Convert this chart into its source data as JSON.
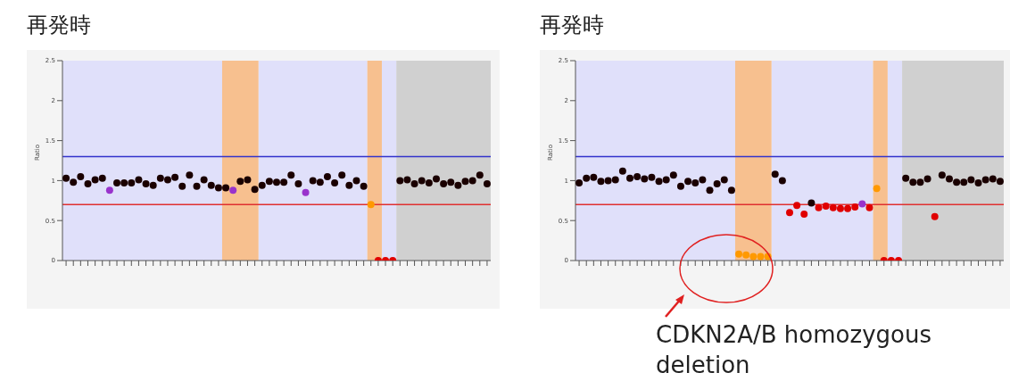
{
  "chart_data": [
    {
      "type": "scatter",
      "title": "再発時",
      "ylabel": "Ratio",
      "categories": [
        null,
        null,
        null,
        null,
        null,
        null,
        null,
        null,
        null,
        null,
        null,
        null,
        null,
        null,
        null,
        null,
        null,
        null,
        null,
        null,
        null,
        null,
        null,
        null,
        null,
        null,
        null,
        null,
        null,
        null,
        null,
        null,
        null,
        null,
        null,
        null,
        null,
        null,
        null,
        null,
        null,
        null,
        null,
        null,
        null,
        null,
        null,
        null,
        null,
        null,
        null,
        null,
        null,
        null,
        null,
        null,
        null,
        null,
        null
      ],
      "ylim": [
        0,
        2.5
      ],
      "yticks": [
        0,
        0.5,
        1,
        1.5,
        2,
        2.5
      ],
      "grid": false,
      "legend": false,
      "marker": "circle",
      "series": [
        {
          "values": [
            1.03,
            0.98,
            1.05,
            0.96,
            1.01,
            1.03,
            0.88,
            0.97,
            0.97,
            0.97,
            1.01,
            0.96,
            0.94,
            1.03,
            1.01,
            1.04,
            0.93,
            1.07,
            0.93,
            1.01,
            0.94,
            0.91,
            0.91,
            0.88,
            0.99,
            1.01,
            0.89,
            0.94,
            0.99,
            0.98,
            0.98,
            1.07,
            0.96,
            0.85,
            1.0,
            0.98,
            1.05,
            0.97,
            1.07,
            0.94,
            1.0,
            0.93,
            0.7,
            0,
            0,
            0,
            1.0,
            1.01,
            0.96,
            1.0,
            0.97,
            1.02,
            0.96,
            0.98,
            0.94,
            0.99,
            1.0,
            1.07,
            0.96
          ],
          "colors": [
            "#1a0000",
            "#1a0000",
            "#1a0000",
            "#1a0000",
            "#1a0000",
            "#1a0000",
            "#9933cc",
            "#1a0000",
            "#1a0000",
            "#1a0000",
            "#1a0000",
            "#1a0000",
            "#1a0000",
            "#1a0000",
            "#1a0000",
            "#1a0000",
            "#1a0000",
            "#1a0000",
            "#1a0000",
            "#1a0000",
            "#1a0000",
            "#1a0000",
            "#1a0000",
            "#9933cc",
            "#1a0000",
            "#1a0000",
            "#1a0000",
            "#1a0000",
            "#1a0000",
            "#1a0000",
            "#1a0000",
            "#1a0000",
            "#1a0000",
            "#9933cc",
            "#1a0000",
            "#1a0000",
            "#1a0000",
            "#1a0000",
            "#1a0000",
            "#1a0000",
            "#1a0000",
            "#1a0000",
            "#ff9900",
            "#e00000",
            "#e00000",
            "#e00000",
            "#1a0000",
            "#1a0000",
            "#1a0000",
            "#1a0000",
            "#1a0000",
            "#1a0000",
            "#1a0000",
            "#1a0000",
            "#1a0000",
            "#1a0000",
            "#1a0000",
            "#1a0000",
            "#1a0000"
          ]
        }
      ],
      "ref_lines": [
        {
          "axis": "y",
          "value": 1.3,
          "color": "#3333cc"
        },
        {
          "axis": "y",
          "value": 0.7,
          "color": "#e03030"
        }
      ]
    },
    {
      "type": "scatter",
      "title": "再発時",
      "ylabel": "Ratio",
      "categories": [
        null,
        null,
        null,
        null,
        null,
        null,
        null,
        null,
        null,
        null,
        null,
        null,
        null,
        null,
        null,
        null,
        null,
        null,
        null,
        null,
        null,
        null,
        null,
        null,
        null,
        null,
        null,
        null,
        null,
        null,
        null,
        null,
        null,
        null,
        null,
        null,
        null,
        null,
        null,
        null,
        null,
        null,
        null,
        null,
        null,
        null,
        null,
        null,
        null,
        null,
        null,
        null,
        null,
        null,
        null,
        null,
        null,
        null,
        null
      ],
      "ylim": [
        0,
        2.5
      ],
      "yticks": [
        0,
        0.5,
        1,
        1.5,
        2,
        2.5
      ],
      "grid": false,
      "legend": false,
      "marker": "circle",
      "annotations": [
        "CDKN2A/B homozygous deletion"
      ],
      "series": [
        {
          "values": [
            0.97,
            1.03,
            1.04,
            0.99,
            1.0,
            1.01,
            1.12,
            1.03,
            1.05,
            1.02,
            1.04,
            0.99,
            1.01,
            1.07,
            0.93,
            0.99,
            0.97,
            1.01,
            0.88,
            0.96,
            1.01,
            0.88,
            0.08,
            0.07,
            0.05,
            0.05,
            0.05,
            1.08,
            1.0,
            0.6,
            0.69,
            0.58,
            0.72,
            0.66,
            0.68,
            0.66,
            0.65,
            0.65,
            0.67,
            0.71,
            0.66,
            0.9,
            0,
            0,
            0,
            1.03,
            0.98,
            0.98,
            1.02,
            0.55,
            1.07,
            1.02,
            0.98,
            0.98,
            1.01,
            0.97,
            1.01,
            1.02,
            0.99
          ],
          "colors": [
            "#1a0000",
            "#1a0000",
            "#1a0000",
            "#1a0000",
            "#1a0000",
            "#1a0000",
            "#1a0000",
            "#1a0000",
            "#1a0000",
            "#1a0000",
            "#1a0000",
            "#1a0000",
            "#1a0000",
            "#1a0000",
            "#1a0000",
            "#1a0000",
            "#1a0000",
            "#1a0000",
            "#1a0000",
            "#1a0000",
            "#1a0000",
            "#1a0000",
            "#ff9900",
            "#ff9900",
            "#ff9900",
            "#ff9900",
            "#ff9900",
            "#1a0000",
            "#1a0000",
            "#e00000",
            "#e00000",
            "#e00000",
            "#1a0000",
            "#e00000",
            "#e00000",
            "#e00000",
            "#e00000",
            "#e00000",
            "#e00000",
            "#9933cc",
            "#e00000",
            "#ff9900",
            "#e00000",
            "#e00000",
            "#e00000",
            "#1a0000",
            "#1a0000",
            "#1a0000",
            "#1a0000",
            "#e00000",
            "#1a0000",
            "#1a0000",
            "#1a0000",
            "#1a0000",
            "#1a0000",
            "#1a0000",
            "#1a0000",
            "#1a0000",
            "#1a0000"
          ]
        }
      ],
      "ref_lines": [
        {
          "axis": "y",
          "value": 1.3,
          "color": "#3333cc"
        },
        {
          "axis": "y",
          "value": 0.7,
          "color": "#e03030"
        }
      ]
    }
  ]
}
